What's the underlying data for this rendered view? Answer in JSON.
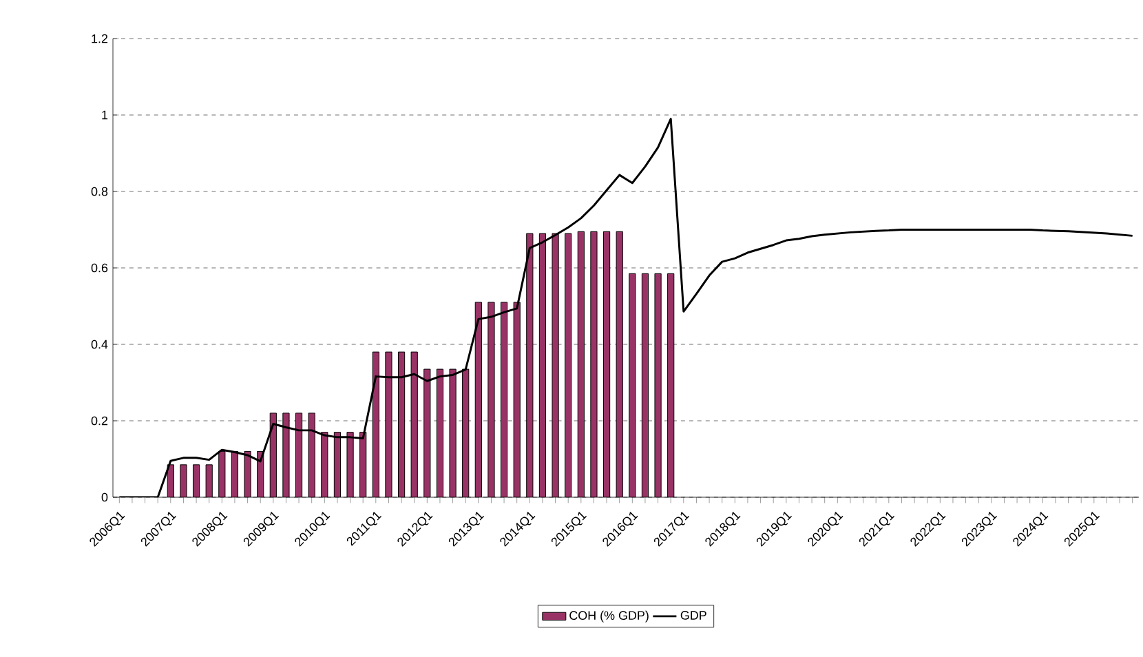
{
  "chart_data": {
    "type": "bar",
    "categories": [
      "2006Q1",
      null,
      null,
      null,
      "2007Q1",
      null,
      null,
      null,
      "2008Q1",
      null,
      null,
      null,
      "2009Q1",
      null,
      null,
      null,
      "2010Q1",
      null,
      null,
      null,
      "2011Q1",
      null,
      null,
      null,
      "2012Q1",
      null,
      null,
      null,
      "2013Q1",
      null,
      null,
      null,
      "2014Q1",
      null,
      null,
      null,
      "2015Q1",
      null,
      null,
      null,
      "2016Q1",
      null,
      null,
      null,
      "2017Q1",
      null,
      null,
      null,
      "2018Q1",
      null,
      null,
      null,
      "2019Q1",
      null,
      null,
      null,
      "2020Q1",
      null,
      null,
      null,
      "2021Q1",
      null,
      null,
      null,
      "2022Q1",
      null,
      null,
      null,
      "2023Q1",
      null,
      null,
      null,
      "2024Q1",
      null,
      null,
      null,
      "2025Q1",
      null,
      null,
      null
    ],
    "series": [
      {
        "name": "COH (% GDP)",
        "color": "#993366",
        "values": [
          null,
          null,
          null,
          null,
          0.085,
          0.085,
          0.085,
          0.085,
          0.12,
          0.12,
          0.12,
          0.12,
          0.22,
          0.22,
          0.22,
          0.22,
          0.17,
          0.17,
          0.17,
          0.17,
          0.38,
          0.38,
          0.38,
          0.38,
          0.335,
          0.335,
          0.335,
          0.335,
          0.51,
          0.51,
          0.51,
          0.51,
          0.69,
          0.69,
          0.69,
          0.69,
          0.695,
          0.695,
          0.695,
          0.695,
          0.585,
          0.585,
          0.585,
          0.585,
          null,
          null,
          null,
          null,
          null,
          null,
          null,
          null,
          null,
          null,
          null,
          null,
          null,
          null,
          null,
          null,
          null,
          null,
          null,
          null,
          null,
          null,
          null,
          null,
          null,
          null,
          null,
          null,
          null,
          null,
          null,
          null,
          null,
          null,
          null,
          null
        ]
      },
      {
        "name": "GDP",
        "type": "line",
        "color": "#000000",
        "values": [
          0,
          0,
          0,
          0,
          0.095,
          0.103,
          0.103,
          0.098,
          0.124,
          0.118,
          0.11,
          0.094,
          0.192,
          0.183,
          0.175,
          0.175,
          0.162,
          0.157,
          0.157,
          0.154,
          0.316,
          0.314,
          0.314,
          0.322,
          0.304,
          0.316,
          0.32,
          0.334,
          0.466,
          0.472,
          0.484,
          0.494,
          0.652,
          0.667,
          0.686,
          0.706,
          0.73,
          0.763,
          0.803,
          0.843,
          0.822,
          0.865,
          0.915,
          0.99,
          0.486,
          0.532,
          0.58,
          0.616,
          0.625,
          0.64,
          0.65,
          0.66,
          0.672,
          0.676,
          0.683,
          0.687,
          0.69,
          0.693,
          0.695,
          0.697,
          0.698,
          0.7,
          0.7,
          0.7,
          0.7,
          0.7,
          0.7,
          0.7,
          0.7,
          0.7,
          0.7,
          0.7,
          0.698,
          0.697,
          0.696,
          0.694,
          0.692,
          0.69,
          0.687,
          0.684
        ]
      }
    ],
    "ylim": [
      0,
      1.2
    ],
    "yticks": [
      0,
      0.2,
      0.4,
      0.6,
      0.8,
      1,
      1.2
    ],
    "grid": "y",
    "legend": "bottom",
    "line_style": "solid",
    "marker": "none"
  }
}
